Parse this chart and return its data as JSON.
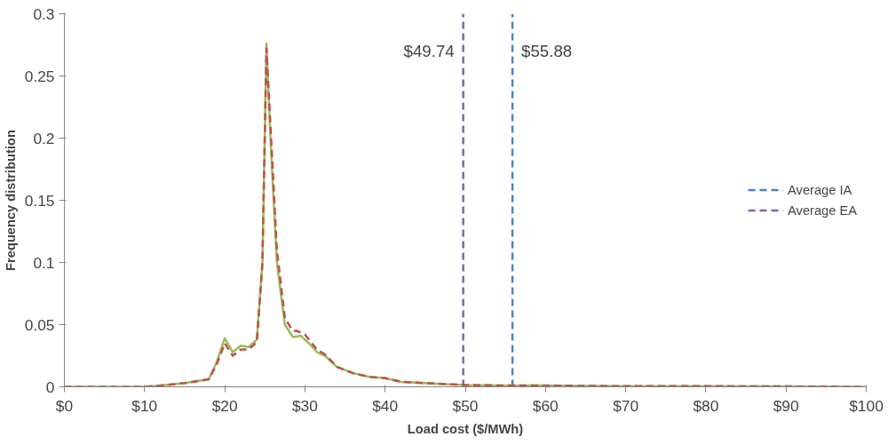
{
  "chart_data": {
    "type": "line",
    "xlabel": "Load cost ($/MWh)",
    "ylabel": "Frequency distribution",
    "xlim": [
      0,
      100
    ],
    "xticks": [
      {
        "value": 0,
        "label": "$0"
      },
      {
        "value": 10,
        "label": "$10"
      },
      {
        "value": 20,
        "label": "$20"
      },
      {
        "value": 30,
        "label": "$30"
      },
      {
        "value": 40,
        "label": "$40"
      },
      {
        "value": 50,
        "label": "$50"
      },
      {
        "value": 60,
        "label": "$60"
      },
      {
        "value": 70,
        "label": "$70"
      },
      {
        "value": 80,
        "label": "$80"
      },
      {
        "value": 90,
        "label": "$90"
      },
      {
        "value": 100,
        "label": "$100"
      }
    ],
    "ylim": [
      0,
      0.3
    ],
    "yticks": [
      0,
      0.05,
      0.1,
      0.15,
      0.2,
      0.25,
      0.3
    ],
    "grid": false,
    "legend": "right",
    "series": [
      {
        "color": "#9bbb59",
        "line_style": "solid",
        "x": [
          0,
          10,
          12,
          15,
          18,
          19,
          20,
          21,
          22,
          23,
          24,
          24.7,
          25.2,
          25.7,
          26.5,
          27.5,
          28.5,
          29.5,
          30.5,
          31.5,
          32.5,
          34,
          36,
          38,
          40,
          42,
          45,
          48,
          50,
          55,
          60,
          70,
          80,
          90,
          100
        ],
        "values": [
          0,
          0,
          0.001,
          0.003,
          0.006,
          0.02,
          0.039,
          0.028,
          0.033,
          0.032,
          0.038,
          0.1,
          0.276,
          0.2,
          0.1,
          0.05,
          0.04,
          0.041,
          0.035,
          0.028,
          0.025,
          0.016,
          0.011,
          0.008,
          0.007,
          0.004,
          0.003,
          0.002,
          0.0015,
          0.001,
          0.001,
          0.0005,
          0.0005,
          0.0003,
          0
        ]
      },
      {
        "name": "Average IA",
        "color": "#4f81bd",
        "line_style": "dashed",
        "x": [
          55.88,
          55.88
        ],
        "values": [
          0,
          0.3
        ]
      },
      {
        "color": "#c0504d",
        "line_style": "dashed",
        "x": [
          0,
          10,
          12,
          15,
          18,
          19,
          20,
          21,
          22,
          23,
          24,
          24.7,
          25.2,
          25.7,
          26.5,
          27.5,
          28.5,
          29,
          30,
          31.5,
          32.5,
          34,
          36,
          38,
          40,
          42,
          45,
          48,
          50,
          55,
          60,
          70,
          80,
          90,
          100
        ],
        "values": [
          0,
          0,
          0.001,
          0.003,
          0.006,
          0.018,
          0.035,
          0.025,
          0.03,
          0.03,
          0.036,
          0.1,
          0.272,
          0.21,
          0.11,
          0.055,
          0.045,
          0.045,
          0.042,
          0.03,
          0.026,
          0.016,
          0.011,
          0.008,
          0.007,
          0.004,
          0.003,
          0.002,
          0.0015,
          0.001,
          0.001,
          0.0005,
          0.0005,
          0.0003,
          0
        ]
      },
      {
        "name": "Average EA",
        "color": "#8064a2",
        "line_style": "dashed",
        "x": [
          49.74,
          49.74
        ],
        "values": [
          0,
          0.3
        ]
      }
    ],
    "annotations": [
      {
        "text": "$49.74",
        "x": 49.74,
        "y": 0.27
      },
      {
        "text": "$55.88",
        "x": 55.88,
        "y": 0.27
      }
    ]
  }
}
